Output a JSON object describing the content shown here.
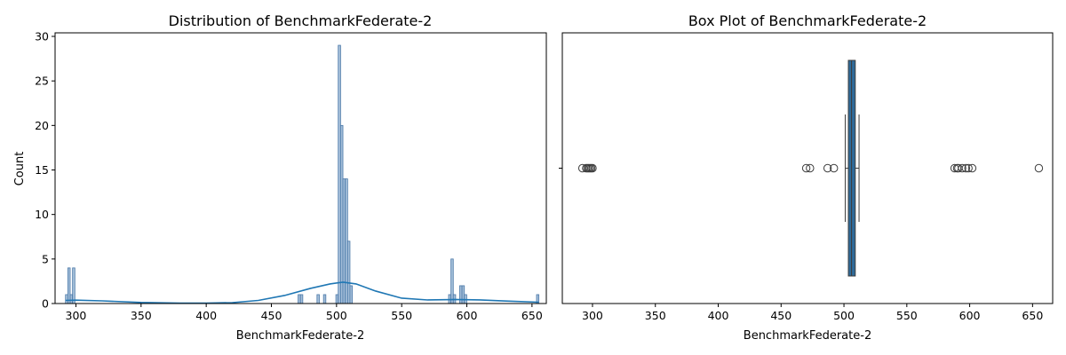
{
  "chart_data": [
    {
      "type": "bar",
      "subtype": "histogram_with_kde",
      "title": "Distribution of BenchmarkFederate-2",
      "xlabel": "BenchmarkFederate-2",
      "ylabel": "Count",
      "xlim": [
        284,
        661
      ],
      "ylim": [
        0,
        30.4
      ],
      "x_ticks": [
        300,
        350,
        400,
        450,
        500,
        550,
        600,
        650
      ],
      "y_ticks": [
        0,
        5,
        10,
        15,
        20,
        25,
        30
      ],
      "bin_width": 1.8,
      "bins": [
        {
          "x": 292.0,
          "count": 1
        },
        {
          "x": 293.8,
          "count": 4
        },
        {
          "x": 295.6,
          "count": 1
        },
        {
          "x": 297.4,
          "count": 4
        },
        {
          "x": 470.5,
          "count": 1
        },
        {
          "x": 472.3,
          "count": 1
        },
        {
          "x": 485.0,
          "count": 1
        },
        {
          "x": 490.0,
          "count": 1
        },
        {
          "x": 499.5,
          "count": 1
        },
        {
          "x": 501.3,
          "count": 29
        },
        {
          "x": 503.1,
          "count": 20
        },
        {
          "x": 504.9,
          "count": 14
        },
        {
          "x": 506.7,
          "count": 14
        },
        {
          "x": 508.5,
          "count": 7
        },
        {
          "x": 510.3,
          "count": 2
        },
        {
          "x": 586.0,
          "count": 1
        },
        {
          "x": 587.8,
          "count": 5
        },
        {
          "x": 589.6,
          "count": 1
        },
        {
          "x": 594.5,
          "count": 2
        },
        {
          "x": 596.3,
          "count": 2
        },
        {
          "x": 598.1,
          "count": 1
        },
        {
          "x": 653.5,
          "count": 1
        }
      ],
      "kde": {
        "x": [
          292,
          300,
          320,
          350,
          380,
          400,
          420,
          440,
          460,
          480,
          495,
          505,
          515,
          530,
          550,
          570,
          590,
          610,
          630,
          655
        ],
        "y": [
          0.35,
          0.38,
          0.3,
          0.12,
          0.05,
          0.05,
          0.1,
          0.35,
          0.9,
          1.7,
          2.2,
          2.4,
          2.2,
          1.4,
          0.6,
          0.4,
          0.45,
          0.4,
          0.28,
          0.15
        ]
      },
      "colors": {
        "bar_fill": "#a5bfd9",
        "bar_edge": "#4a78a8",
        "kde_line": "#1f77b4"
      }
    },
    {
      "type": "box",
      "title": "Box Plot of BenchmarkFederate-2",
      "xlabel": "BenchmarkFederate-2",
      "xlim": [
        276,
        666
      ],
      "x_ticks": [
        300,
        350,
        400,
        450,
        500,
        550,
        600,
        650
      ],
      "box": {
        "q1": 503.5,
        "median": 506,
        "q3": 509,
        "whisker_low": 501,
        "whisker_high": 512
      },
      "outliers": [
        292,
        295,
        296,
        297,
        298,
        299,
        300,
        470,
        473,
        487,
        492,
        588,
        590,
        591,
        594,
        597,
        599,
        602,
        655
      ],
      "colors": {
        "box_fill": "#2f6a99",
        "edge": "#3d3d3d"
      }
    }
  ]
}
